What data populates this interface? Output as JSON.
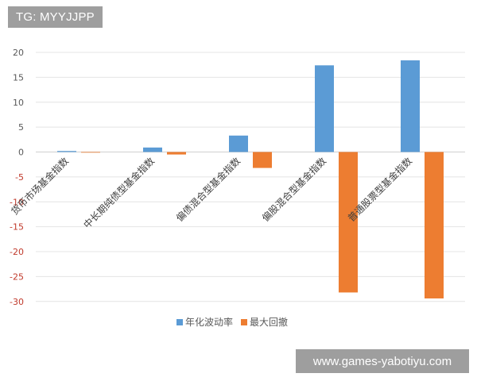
{
  "watermarks": {
    "top_left": "TG: MYYJJPP",
    "bottom_right": "www.games-yabotiyu.com"
  },
  "chart_data": {
    "type": "bar",
    "categories": [
      "货币市场基金指数",
      "中长期纯债型基金指数",
      "偏债混合型基金指数",
      "偏股混合型基金指数",
      "普通股票型基金指数"
    ],
    "series": [
      {
        "name": "年化波动率",
        "values": [
          0.2,
          0.9,
          3.3,
          17.4,
          18.4
        ],
        "color": "#5b9bd5"
      },
      {
        "name": "最大回撤",
        "values": [
          0,
          -0.5,
          -3.2,
          -28.2,
          -29.4
        ],
        "color": "#ed7d31"
      }
    ],
    "yticks": [
      20,
      15,
      10,
      5,
      0,
      -5,
      -10,
      -15,
      -20,
      -25,
      -30
    ],
    "ylim": [
      -30,
      20
    ],
    "grid": true,
    "legend_position": "bottom"
  }
}
